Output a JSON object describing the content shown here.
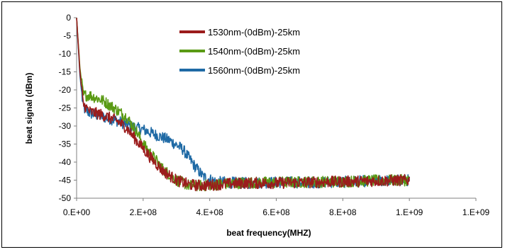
{
  "chart_data": {
    "type": "line",
    "title": "",
    "xlabel": "beat frequency(MHZ)",
    "ylabel": "beat signal (dBm)",
    "xlim": [
      0,
      1200000000
    ],
    "ylim": [
      -50,
      0
    ],
    "x_ticks": [
      0,
      200000000,
      400000000,
      600000000,
      800000000,
      1000000000,
      1200000000
    ],
    "x_tick_labels": [
      "0.E+00",
      "2.E+08",
      "4.E+08",
      "6.E+08",
      "8.E+08",
      "1.E+09",
      "1.E+09"
    ],
    "y_ticks": [
      0,
      -5,
      -10,
      -15,
      -20,
      -25,
      -30,
      -35,
      -40,
      -45,
      -50
    ],
    "y_tick_labels": [
      "0",
      "-5",
      "-10",
      "-15",
      "-20",
      "-25",
      "-30",
      "-35",
      "-40",
      "-45",
      "-50"
    ],
    "grid": false,
    "legend_position": "upper-center",
    "series": [
      {
        "name": "1530nm-(0dBm)-25km",
        "color": "#9b1c1c",
        "x": [
          0,
          10000000,
          20000000,
          40000000,
          80000000,
          120000000,
          150000000,
          180000000,
          220000000,
          260000000,
          300000000,
          340000000,
          380000000,
          420000000,
          500000000,
          600000000,
          700000000,
          800000000,
          900000000,
          1000000000
        ],
        "y": [
          0,
          -15,
          -24,
          -26,
          -27,
          -28.5,
          -30.5,
          -34,
          -38.5,
          -42.5,
          -45,
          -46.3,
          -46.5,
          -46.2,
          -45.8,
          -45.8,
          -45.6,
          -45.4,
          -45.2,
          -45
        ]
      },
      {
        "name": "1540nm-(0dBm)-25km",
        "color": "#5a9a14",
        "x": [
          0,
          10000000,
          20000000,
          40000000,
          80000000,
          120000000,
          150000000,
          180000000,
          200000000,
          230000000,
          260000000,
          300000000,
          340000000,
          380000000,
          420000000,
          500000000,
          600000000,
          700000000,
          800000000,
          900000000,
          1000000000
        ],
        "y": [
          0,
          -14,
          -21.5,
          -21.5,
          -23,
          -25.5,
          -27.5,
          -31.5,
          -35,
          -38.5,
          -42,
          -45,
          -46.5,
          -46.5,
          -46.2,
          -45.7,
          -45.6,
          -45.5,
          -45.4,
          -45.1,
          -45
        ]
      },
      {
        "name": "1560nm-(0dBm)-25km",
        "color": "#1f6aa5",
        "x": [
          0,
          10000000,
          20000000,
          40000000,
          80000000,
          120000000,
          160000000,
          200000000,
          240000000,
          280000000,
          320000000,
          350000000,
          380000000,
          420000000,
          500000000,
          600000000,
          700000000,
          800000000,
          900000000,
          1000000000
        ],
        "y": [
          0,
          -16,
          -25,
          -26.5,
          -27.5,
          -28.5,
          -30,
          -31,
          -32.5,
          -34,
          -36.5,
          -40.5,
          -44,
          -45.5,
          -45.8,
          -45.6,
          -45.6,
          -45.5,
          -45.2,
          -45
        ]
      }
    ]
  }
}
